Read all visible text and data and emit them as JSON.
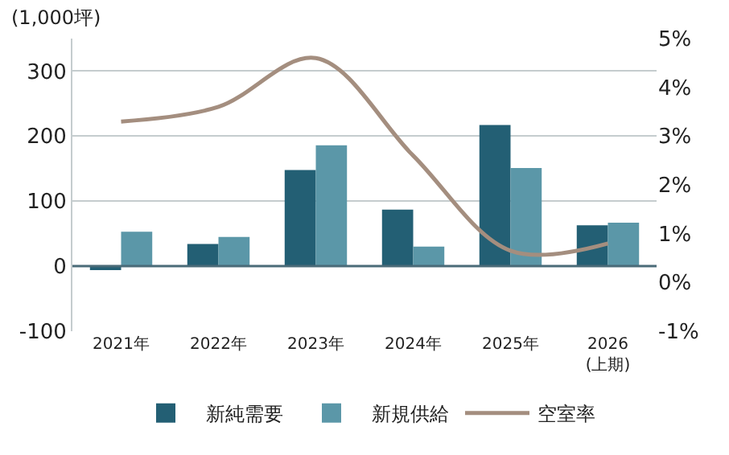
{
  "chart_data": {
    "type": "bar",
    "ylabel": "(1,000坪)",
    "categories": [
      "2021年",
      "2022年",
      "2023年",
      "2024年",
      "2025年",
      "2026\n(上期)"
    ],
    "series": [
      {
        "name": "新純需要",
        "color": "#235f74",
        "values": [
          -6,
          34,
          148,
          87,
          217,
          63
        ]
      },
      {
        "name": "新規供給",
        "color": "#5b97a8",
        "values": [
          53,
          45,
          186,
          30,
          151,
          67
        ]
      },
      {
        "name": "空室率",
        "type": "line",
        "axis": "y2",
        "color": "#a48e7f",
        "values": [
          3.3,
          3.6,
          4.6,
          2.6,
          0.65,
          0.8
        ]
      }
    ],
    "ylim": [
      -100,
      350
    ],
    "yticks": [
      -100,
      0,
      100,
      200,
      300
    ],
    "y2lim": [
      -1,
      5
    ],
    "y2ticks": [
      {
        "value": -1,
        "label": "-1%"
      },
      {
        "value": 0,
        "label": "0%"
      },
      {
        "value": 1,
        "label": "1%"
      },
      {
        "value": 2,
        "label": "2%"
      },
      {
        "value": 3,
        "label": "3%"
      },
      {
        "value": 4,
        "label": "4%"
      },
      {
        "value": 5,
        "label": "5%"
      }
    ],
    "ref_lines": [
      {
        "axis": "y",
        "value": 0,
        "color": "#4a6b78"
      }
    ],
    "grid": "y",
    "legend": "bottom",
    "line_style": "solid",
    "marker": "none"
  }
}
